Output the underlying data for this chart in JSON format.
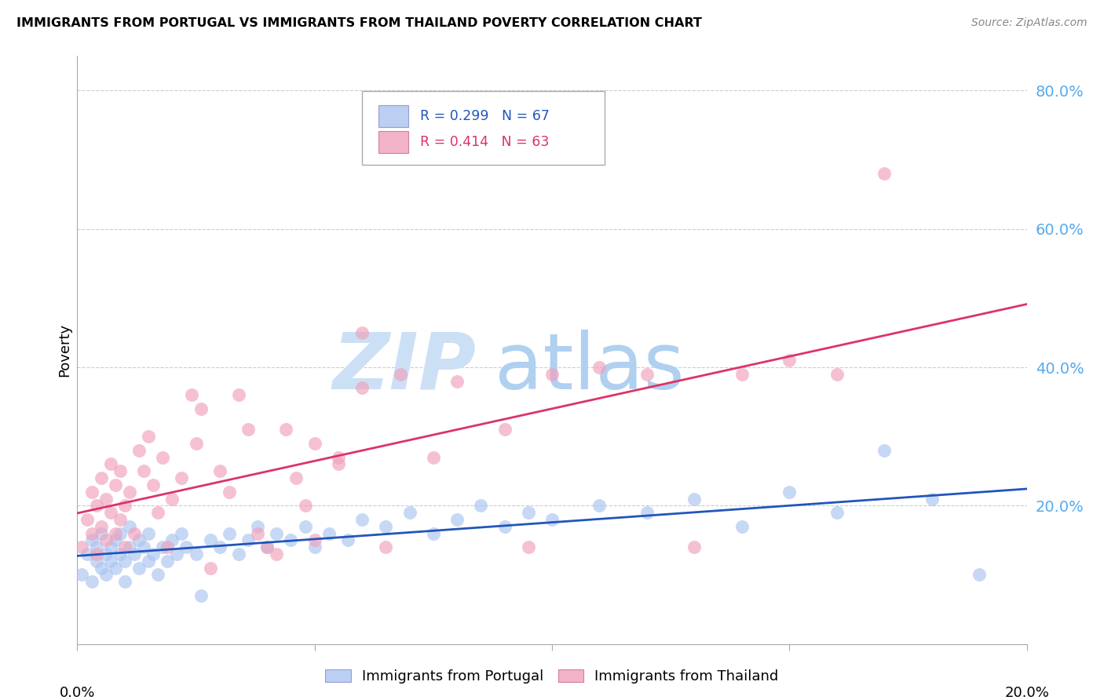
{
  "title": "IMMIGRANTS FROM PORTUGAL VS IMMIGRANTS FROM THAILAND POVERTY CORRELATION CHART",
  "source": "Source: ZipAtlas.com",
  "ylabel": "Poverty",
  "xlim": [
    0.0,
    0.2
  ],
  "ylim": [
    0.0,
    0.85
  ],
  "yticks": [
    0.0,
    0.2,
    0.4,
    0.6,
    0.8
  ],
  "ytick_labels": [
    "",
    "20.0%",
    "40.0%",
    "60.0%",
    "80.0%"
  ],
  "xtick_positions": [
    0.0,
    0.05,
    0.1,
    0.15,
    0.2
  ],
  "legend_labels_bottom": [
    "Immigrants from Portugal",
    "Immigrants from Thailand"
  ],
  "portugal_color": "#aac4f0",
  "thailand_color": "#f0a0bb",
  "portugal_line_color": "#2255bb",
  "thailand_line_color": "#dd3366",
  "portugal_R": "0.299",
  "portugal_N": "67",
  "thailand_R": "0.414",
  "thailand_N": "63",
  "portugal_label_color": "#2255bb",
  "thailand_label_color": "#dd3366",
  "ytick_color": "#55aaee",
  "watermark_zip_color": "#cce0f5",
  "watermark_atlas_color": "#b0d0f0",
  "portugal_points": [
    [
      0.001,
      0.1
    ],
    [
      0.002,
      0.13
    ],
    [
      0.003,
      0.09
    ],
    [
      0.003,
      0.15
    ],
    [
      0.004,
      0.12
    ],
    [
      0.004,
      0.14
    ],
    [
      0.005,
      0.11
    ],
    [
      0.005,
      0.16
    ],
    [
      0.006,
      0.13
    ],
    [
      0.006,
      0.1
    ],
    [
      0.007,
      0.14
    ],
    [
      0.007,
      0.12
    ],
    [
      0.008,
      0.15
    ],
    [
      0.008,
      0.11
    ],
    [
      0.009,
      0.13
    ],
    [
      0.009,
      0.16
    ],
    [
      0.01,
      0.12
    ],
    [
      0.01,
      0.09
    ],
    [
      0.011,
      0.14
    ],
    [
      0.011,
      0.17
    ],
    [
      0.012,
      0.13
    ],
    [
      0.013,
      0.11
    ],
    [
      0.013,
      0.15
    ],
    [
      0.014,
      0.14
    ],
    [
      0.015,
      0.12
    ],
    [
      0.015,
      0.16
    ],
    [
      0.016,
      0.13
    ],
    [
      0.017,
      0.1
    ],
    [
      0.018,
      0.14
    ],
    [
      0.019,
      0.12
    ],
    [
      0.02,
      0.15
    ],
    [
      0.021,
      0.13
    ],
    [
      0.022,
      0.16
    ],
    [
      0.023,
      0.14
    ],
    [
      0.025,
      0.13
    ],
    [
      0.026,
      0.07
    ],
    [
      0.028,
      0.15
    ],
    [
      0.03,
      0.14
    ],
    [
      0.032,
      0.16
    ],
    [
      0.034,
      0.13
    ],
    [
      0.036,
      0.15
    ],
    [
      0.038,
      0.17
    ],
    [
      0.04,
      0.14
    ],
    [
      0.042,
      0.16
    ],
    [
      0.045,
      0.15
    ],
    [
      0.048,
      0.17
    ],
    [
      0.05,
      0.14
    ],
    [
      0.053,
      0.16
    ],
    [
      0.057,
      0.15
    ],
    [
      0.06,
      0.18
    ],
    [
      0.065,
      0.17
    ],
    [
      0.07,
      0.19
    ],
    [
      0.075,
      0.16
    ],
    [
      0.08,
      0.18
    ],
    [
      0.085,
      0.2
    ],
    [
      0.09,
      0.17
    ],
    [
      0.095,
      0.19
    ],
    [
      0.1,
      0.18
    ],
    [
      0.11,
      0.2
    ],
    [
      0.12,
      0.19
    ],
    [
      0.13,
      0.21
    ],
    [
      0.14,
      0.17
    ],
    [
      0.15,
      0.22
    ],
    [
      0.16,
      0.19
    ],
    [
      0.17,
      0.28
    ],
    [
      0.18,
      0.21
    ],
    [
      0.19,
      0.1
    ]
  ],
  "thailand_points": [
    [
      0.001,
      0.14
    ],
    [
      0.002,
      0.18
    ],
    [
      0.003,
      0.16
    ],
    [
      0.003,
      0.22
    ],
    [
      0.004,
      0.13
    ],
    [
      0.004,
      0.2
    ],
    [
      0.005,
      0.17
    ],
    [
      0.005,
      0.24
    ],
    [
      0.006,
      0.15
    ],
    [
      0.006,
      0.21
    ],
    [
      0.007,
      0.19
    ],
    [
      0.007,
      0.26
    ],
    [
      0.008,
      0.16
    ],
    [
      0.008,
      0.23
    ],
    [
      0.009,
      0.18
    ],
    [
      0.009,
      0.25
    ],
    [
      0.01,
      0.2
    ],
    [
      0.01,
      0.14
    ],
    [
      0.011,
      0.22
    ],
    [
      0.012,
      0.16
    ],
    [
      0.013,
      0.28
    ],
    [
      0.014,
      0.25
    ],
    [
      0.015,
      0.3
    ],
    [
      0.016,
      0.23
    ],
    [
      0.017,
      0.19
    ],
    [
      0.018,
      0.27
    ],
    [
      0.019,
      0.14
    ],
    [
      0.02,
      0.21
    ],
    [
      0.022,
      0.24
    ],
    [
      0.024,
      0.36
    ],
    [
      0.025,
      0.29
    ],
    [
      0.026,
      0.34
    ],
    [
      0.028,
      0.11
    ],
    [
      0.03,
      0.25
    ],
    [
      0.032,
      0.22
    ],
    [
      0.034,
      0.36
    ],
    [
      0.036,
      0.31
    ],
    [
      0.038,
      0.16
    ],
    [
      0.04,
      0.14
    ],
    [
      0.042,
      0.13
    ],
    [
      0.044,
      0.31
    ],
    [
      0.046,
      0.24
    ],
    [
      0.048,
      0.2
    ],
    [
      0.05,
      0.29
    ],
    [
      0.055,
      0.27
    ],
    [
      0.06,
      0.45
    ],
    [
      0.065,
      0.14
    ],
    [
      0.068,
      0.39
    ],
    [
      0.075,
      0.27
    ],
    [
      0.08,
      0.38
    ],
    [
      0.09,
      0.31
    ],
    [
      0.095,
      0.14
    ],
    [
      0.1,
      0.39
    ],
    [
      0.11,
      0.4
    ],
    [
      0.12,
      0.39
    ],
    [
      0.13,
      0.14
    ],
    [
      0.14,
      0.39
    ],
    [
      0.15,
      0.41
    ],
    [
      0.16,
      0.39
    ],
    [
      0.05,
      0.15
    ],
    [
      0.06,
      0.37
    ],
    [
      0.17,
      0.68
    ],
    [
      0.055,
      0.26
    ]
  ]
}
